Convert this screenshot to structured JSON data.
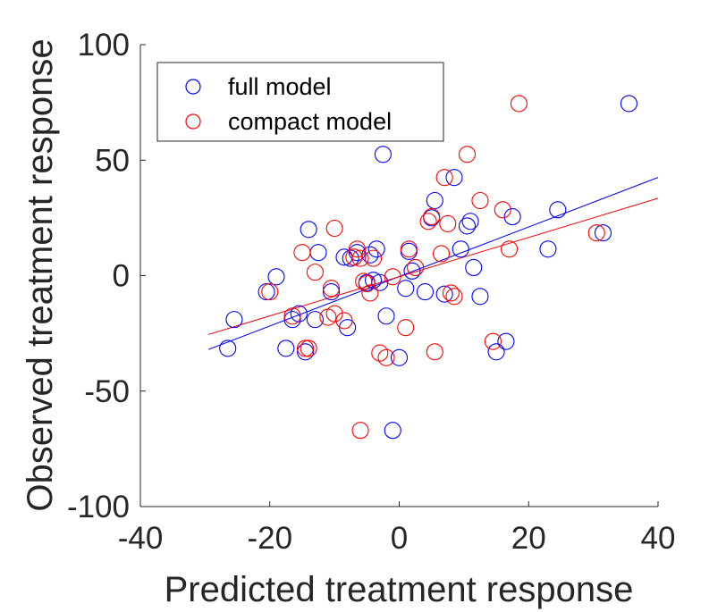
{
  "chart_data": {
    "type": "scatter",
    "xlabel": "Predicted treatment response",
    "ylabel": "Observed treatment response",
    "xlim": [
      -40,
      40
    ],
    "ylim": [
      -100,
      100
    ],
    "xticks": [
      -40,
      -20,
      0,
      20,
      40
    ],
    "yticks": [
      -100,
      -50,
      0,
      50,
      100
    ],
    "xtick_labels": [
      "-40",
      "-20",
      "0",
      "20",
      "40"
    ],
    "ytick_labels": [
      "-100",
      "-50",
      "0",
      "50",
      "100"
    ],
    "grid": false,
    "legend_position": "top-left",
    "series": [
      {
        "name": "full model",
        "color": "#0000ff",
        "marker": "open-circle",
        "points": [
          [
            -26.5,
            -31.5
          ],
          [
            -25.5,
            -19
          ],
          [
            -20.5,
            -7
          ],
          [
            -19,
            -0.5
          ],
          [
            -17.5,
            -31.5
          ],
          [
            -16.5,
            -19
          ],
          [
            -15.5,
            -16.5
          ],
          [
            -14.5,
            -33
          ],
          [
            -14,
            20
          ],
          [
            -13,
            -19
          ],
          [
            -12.5,
            10
          ],
          [
            -10.5,
            -7
          ],
          [
            -8.5,
            8
          ],
          [
            -8,
            -22.5
          ],
          [
            -7.5,
            7.5
          ],
          [
            -6.5,
            10
          ],
          [
            -5,
            -3
          ],
          [
            -4.5,
            9
          ],
          [
            -4,
            -2
          ],
          [
            -3.5,
            11.5
          ],
          [
            -3,
            -3
          ],
          [
            -2.5,
            52.5
          ],
          [
            -2,
            -17.5
          ],
          [
            -1,
            -67
          ],
          [
            0,
            -35.5
          ],
          [
            1,
            -5.5
          ],
          [
            1.5,
            10.5
          ],
          [
            2,
            2
          ],
          [
            4,
            -7
          ],
          [
            5,
            25
          ],
          [
            5.5,
            32.5
          ],
          [
            7,
            -8
          ],
          [
            8.5,
            42.5
          ],
          [
            9.5,
            11.5
          ],
          [
            10.5,
            21.5
          ],
          [
            11,
            23.5
          ],
          [
            11.5,
            3.5
          ],
          [
            12.5,
            -9
          ],
          [
            15,
            -33
          ],
          [
            16.5,
            -28.5
          ],
          [
            17.5,
            25.5
          ],
          [
            23,
            11.5
          ],
          [
            24.5,
            28.5
          ],
          [
            31.5,
            18.5
          ],
          [
            35.5,
            74.5
          ]
        ],
        "fit_line": {
          "x": [
            -29.5,
            40
          ],
          "y": [
            -32,
            42.5
          ]
        }
      },
      {
        "name": "compact model",
        "color": "#ff0000",
        "marker": "open-circle",
        "points": [
          [
            -20,
            -7
          ],
          [
            -16.5,
            -17.5
          ],
          [
            -15,
            10
          ],
          [
            -14.5,
            -31.5
          ],
          [
            -14,
            -31.5
          ],
          [
            -13,
            1.5
          ],
          [
            -11,
            -18
          ],
          [
            -10.5,
            -5.5
          ],
          [
            -10,
            -16.5
          ],
          [
            -10,
            20.5
          ],
          [
            -8.5,
            -19.5
          ],
          [
            -7,
            8
          ],
          [
            -6.5,
            11.5
          ],
          [
            -6,
            7.5
          ],
          [
            -6,
            -67
          ],
          [
            -5.5,
            -2.5
          ],
          [
            -5,
            -3.5
          ],
          [
            -4.5,
            -7.5
          ],
          [
            -4,
            7.5
          ],
          [
            -3,
            -33.5
          ],
          [
            -2,
            -35.5
          ],
          [
            -1,
            -0.5
          ],
          [
            1,
            -22.5
          ],
          [
            1.5,
            11.5
          ],
          [
            2.5,
            3.5
          ],
          [
            4.5,
            23.5
          ],
          [
            5,
            25.5
          ],
          [
            5.5,
            -33
          ],
          [
            6.5,
            9.5
          ],
          [
            7,
            42.5
          ],
          [
            7.5,
            22.5
          ],
          [
            8,
            -7.5
          ],
          [
            8.5,
            -9
          ],
          [
            10.5,
            52.5
          ],
          [
            12.5,
            32.5
          ],
          [
            14.5,
            -28.5
          ],
          [
            16,
            28.5
          ],
          [
            17,
            11.5
          ],
          [
            18.5,
            74.5
          ],
          [
            30.5,
            18.5
          ]
        ],
        "fit_line": {
          "x": [
            -29.5,
            40
          ],
          "y": [
            -25.5,
            33.5
          ]
        }
      }
    ]
  }
}
